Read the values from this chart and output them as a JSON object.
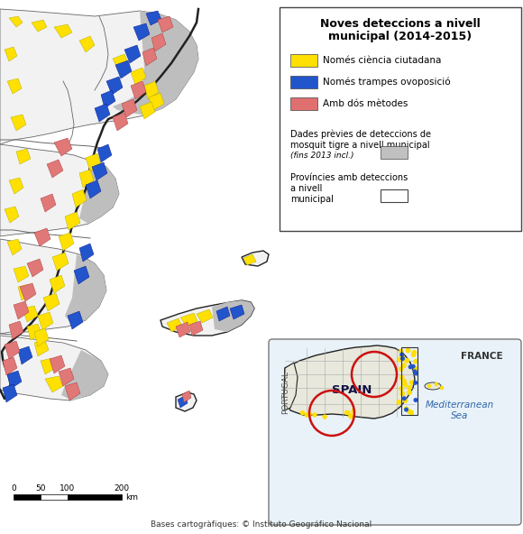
{
  "title_line1": "Noves deteccions a nivell",
  "title_line2": "municipal (2014-2015)",
  "legend_items": [
    {
      "label": "Només ciència ciutadana",
      "color": "#FFE000"
    },
    {
      "label": "Només trampes ovoposició",
      "color": "#2255CC"
    },
    {
      "label": "Amb dós mètodes",
      "color": "#E07070"
    }
  ],
  "legend_gray_text": "Dades prèvies de deteccions de\nmosquit tigre a nivell municipal\n(fins 2013 incl.)",
  "legend_gray_color": "#C0C0C0",
  "legend_province_text": "Províncies amb deteccions\na nivell\nmunicipal",
  "scalebar_ticks": [
    "0",
    "50",
    "100",
    "200"
  ],
  "scalebar_label": "km",
  "footer": "Bases cartogràfiques: © Instituto Geográfico Nacional",
  "inset_france": "FRANCE",
  "inset_spain": "SPAIN",
  "inset_portugal": "PORTUGAL",
  "inset_med": "Mediterranean\nSea",
  "bg_color": "#FFFFFF",
  "land_color": "#F2F2F2",
  "gray_fill": "#BEBEBE",
  "yellow_fill": "#FFE000",
  "blue_fill": "#2255CC",
  "pink_fill": "#E07878",
  "border_color": "#222222",
  "thin_border": "#666666",
  "circle_color": "#CC1111",
  "inset_bg": "#E8F0F8",
  "inset_land": "#E8E8DC",
  "inset_border": "#777777"
}
